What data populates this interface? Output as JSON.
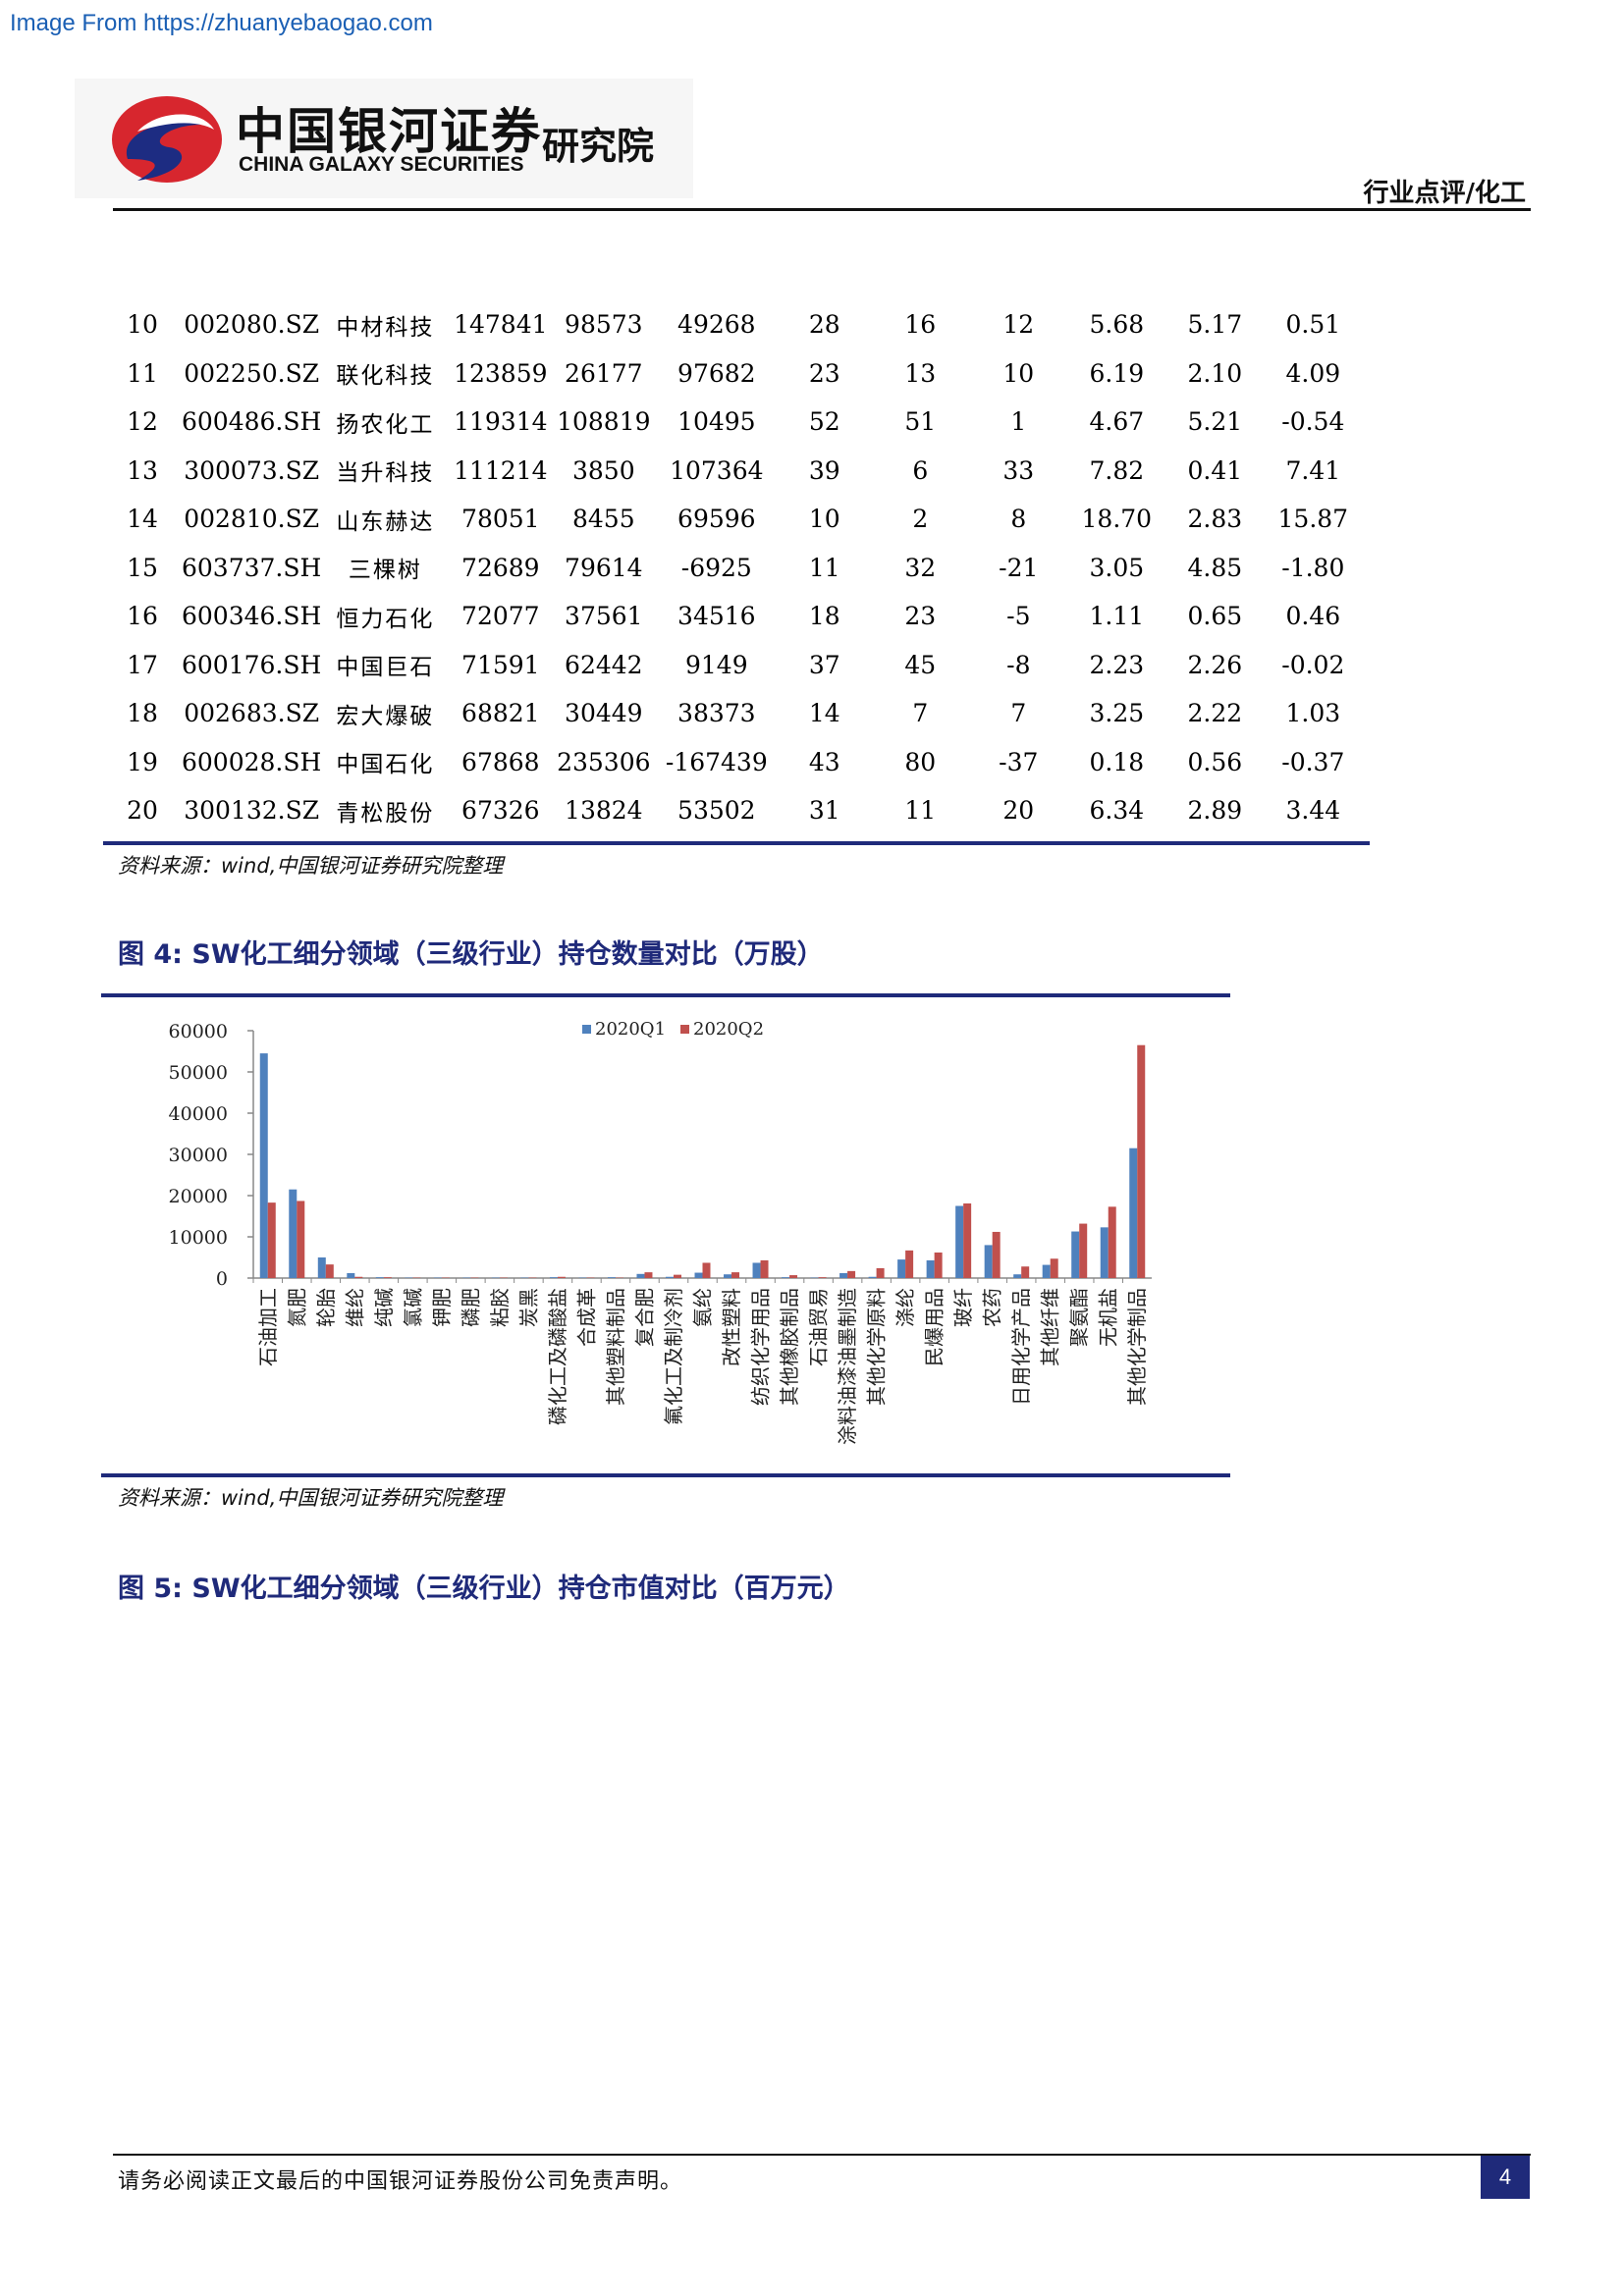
{
  "watermark": "Image From https://zhuanyebaogao.com",
  "header": {
    "logo_cn": "中国银河证券",
    "logo_en": "CHINA GALAXY SECURITIES",
    "logo_inst": "研究院",
    "category": "行业点评/化工"
  },
  "table": {
    "rows": [
      [
        "10",
        "002080.SZ",
        "中材科技",
        "147841",
        "98573",
        "49268",
        "28",
        "16",
        "12",
        "5.68",
        "5.17",
        "0.51"
      ],
      [
        "11",
        "002250.SZ",
        "联化科技",
        "123859",
        "26177",
        "97682",
        "23",
        "13",
        "10",
        "6.19",
        "2.10",
        "4.09"
      ],
      [
        "12",
        "600486.SH",
        "扬农化工",
        "119314",
        "108819",
        "10495",
        "52",
        "51",
        "1",
        "4.67",
        "5.21",
        "-0.54"
      ],
      [
        "13",
        "300073.SZ",
        "当升科技",
        "111214",
        "3850",
        "107364",
        "39",
        "6",
        "33",
        "7.82",
        "0.41",
        "7.41"
      ],
      [
        "14",
        "002810.SZ",
        "山东赫达",
        "78051",
        "8455",
        "69596",
        "10",
        "2",
        "8",
        "18.70",
        "2.83",
        "15.87"
      ],
      [
        "15",
        "603737.SH",
        "三棵树",
        "72689",
        "79614",
        "-6925",
        "11",
        "32",
        "-21",
        "3.05",
        "4.85",
        "-1.80"
      ],
      [
        "16",
        "600346.SH",
        "恒力石化",
        "72077",
        "37561",
        "34516",
        "18",
        "23",
        "-5",
        "1.11",
        "0.65",
        "0.46"
      ],
      [
        "17",
        "600176.SH",
        "中国巨石",
        "71591",
        "62442",
        "9149",
        "37",
        "45",
        "-8",
        "2.23",
        "2.26",
        "-0.02"
      ],
      [
        "18",
        "002683.SZ",
        "宏大爆破",
        "68821",
        "30449",
        "38373",
        "14",
        "7",
        "7",
        "3.25",
        "2.22",
        "1.03"
      ],
      [
        "19",
        "600028.SH",
        "中国石化",
        "67868",
        "235306",
        "-167439",
        "43",
        "80",
        "-37",
        "0.18",
        "0.56",
        "-0.37"
      ],
      [
        "20",
        "300132.SZ",
        "青松股份",
        "67326",
        "13824",
        "53502",
        "31",
        "11",
        "20",
        "6.34",
        "2.89",
        "3.44"
      ]
    ],
    "source": "资料来源：wind,中国银河证券研究院整理"
  },
  "figure4": {
    "title": "图 4:  SW化工细分领域（三级行业）持仓数量对比（万股）",
    "source": "资料来源：wind,中国银河证券研究院整理"
  },
  "figure5": {
    "title": "图 5:  SW化工细分领域（三级行业）持仓市值对比（百万元）"
  },
  "chart_data": {
    "type": "bar",
    "title": "",
    "xlabel": "",
    "ylabel": "",
    "ylim": [
      0,
      60000
    ],
    "yticks": [
      "60000",
      "50000",
      "40000",
      "30000",
      "20000",
      "10000",
      "0"
    ],
    "categories": [
      "石油加工",
      "氮肥",
      "轮胎",
      "维纶",
      "纯碱",
      "氯碱",
      "钾肥",
      "磷肥",
      "粘胶",
      "炭黑",
      "磷化工及磷酸盐",
      "合成革",
      "其他塑料制品",
      "复合肥",
      "氟化工及制冷剂",
      "氨纶",
      "改性塑料",
      "纺织化学用品",
      "其他橡胶制品",
      "石油贸易",
      "涂料油漆油墨制造",
      "其他化学原料",
      "涤纶",
      "民爆用品",
      "玻纤",
      "农药",
      "日用化学产品",
      "其他纤维",
      "聚氨酯",
      "无机盐",
      "其他化学制品"
    ],
    "series": [
      {
        "name": "2020Q1",
        "color": "#4f81bd",
        "values": [
          54500,
          21500,
          5000,
          1200,
          200,
          100,
          100,
          100,
          100,
          100,
          200,
          100,
          200,
          1000,
          300,
          1300,
          900,
          3700,
          200,
          100,
          1200,
          300,
          4500,
          4300,
          17500,
          8000,
          900,
          3200,
          11300,
          12300,
          31500
        ]
      },
      {
        "name": "2020Q2",
        "color": "#c0504d",
        "values": [
          18300,
          18700,
          3300,
          300,
          200,
          100,
          100,
          100,
          100,
          100,
          300,
          100,
          100,
          1400,
          800,
          3700,
          1400,
          4300,
          700,
          200,
          1700,
          2400,
          6700,
          6200,
          18100,
          11200,
          2800,
          4700,
          13200,
          17300,
          56500
        ]
      }
    ],
    "legend": "top-center",
    "grid": false
  },
  "footer": {
    "disclaimer": "请务必阅读正文最后的中国银河证券股份公司免责声明。",
    "page": "4"
  }
}
